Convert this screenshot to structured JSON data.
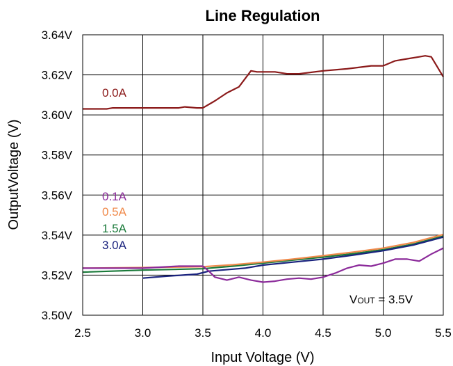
{
  "chart_data": {
    "type": "line",
    "title": "Line Regulation",
    "xlabel": "Input Voltage (V)",
    "ylabel": "OutputVoltage (V)",
    "xlim": [
      2.5,
      5.5
    ],
    "ylim": [
      3.5,
      3.64
    ],
    "x_ticks": [
      "2.5",
      "3.0",
      "3.5",
      "4.0",
      "4.5",
      "5.0",
      "5.5"
    ],
    "y_ticks": [
      "3.64V",
      "3.62V",
      "3.60V",
      "3.58V",
      "3.56V",
      "3.54V",
      "3.52V",
      "3.50V"
    ],
    "grid": true,
    "annotation": {
      "prefix": "V",
      "subscript": "OUT",
      "suffix": " = 3.5V"
    },
    "series": [
      {
        "name": "0.0A",
        "color": "#8B1A1A",
        "x": [
          2.5,
          2.7,
          2.75,
          3.0,
          3.3,
          3.35,
          3.45,
          3.5,
          3.6,
          3.7,
          3.8,
          3.85,
          3.9,
          3.95,
          4.0,
          4.1,
          4.2,
          4.3,
          4.5,
          4.7,
          4.9,
          5.0,
          5.1,
          5.2,
          5.3,
          5.35,
          5.4,
          5.45,
          5.5
        ],
        "y": [
          3.603,
          3.603,
          3.6035,
          3.6035,
          3.6035,
          3.604,
          3.6035,
          3.6035,
          3.607,
          3.611,
          3.614,
          3.618,
          3.622,
          3.6215,
          3.6215,
          3.6215,
          3.6205,
          3.6205,
          3.622,
          3.623,
          3.6245,
          3.6245,
          3.627,
          3.628,
          3.629,
          3.6295,
          3.629,
          3.624,
          3.619
        ]
      },
      {
        "name": "0.1A",
        "color": "#8B2A9A",
        "x": [
          2.5,
          3.0,
          3.3,
          3.5,
          3.55,
          3.6,
          3.7,
          3.8,
          3.9,
          4.0,
          4.1,
          4.2,
          4.3,
          4.4,
          4.5,
          4.6,
          4.7,
          4.8,
          4.9,
          5.0,
          5.1,
          5.2,
          5.3,
          5.4,
          5.5
        ],
        "y": [
          3.5235,
          3.5235,
          3.5245,
          3.5245,
          3.522,
          3.519,
          3.5175,
          3.519,
          3.5175,
          3.5165,
          3.517,
          3.518,
          3.5185,
          3.518,
          3.519,
          3.521,
          3.5235,
          3.525,
          3.5245,
          3.526,
          3.528,
          3.528,
          3.527,
          3.5305,
          3.5335
        ]
      },
      {
        "name": "0.5A",
        "color": "#F08A4B",
        "x": [
          2.5,
          3.0,
          3.5,
          3.75,
          4.0,
          4.25,
          4.5,
          4.75,
          5.0,
          5.25,
          5.5
        ],
        "y": [
          3.5235,
          3.5238,
          3.5242,
          3.5252,
          3.5265,
          3.528,
          3.5297,
          3.5315,
          3.5335,
          3.5363,
          3.5403
        ]
      },
      {
        "name": "1.5A",
        "color": "#1A7A3A",
        "x": [
          2.5,
          3.0,
          3.5,
          3.75,
          4.0,
          4.25,
          4.5,
          4.75,
          5.0,
          5.25,
          5.5
        ],
        "y": [
          3.5215,
          3.5225,
          3.5232,
          3.5245,
          3.526,
          3.5275,
          3.529,
          3.5307,
          3.5327,
          3.5355,
          3.5395
        ]
      },
      {
        "name": "3.0A",
        "color": "#1A237E",
        "x": [
          3.0,
          3.2,
          3.45,
          3.55,
          3.75,
          3.85,
          4.0,
          4.25,
          4.5,
          4.75,
          5.0,
          5.25,
          5.5
        ],
        "y": [
          3.5185,
          3.5195,
          3.5205,
          3.522,
          3.523,
          3.5235,
          3.525,
          3.5265,
          3.528,
          3.53,
          3.5322,
          3.535,
          3.539
        ]
      }
    ]
  }
}
